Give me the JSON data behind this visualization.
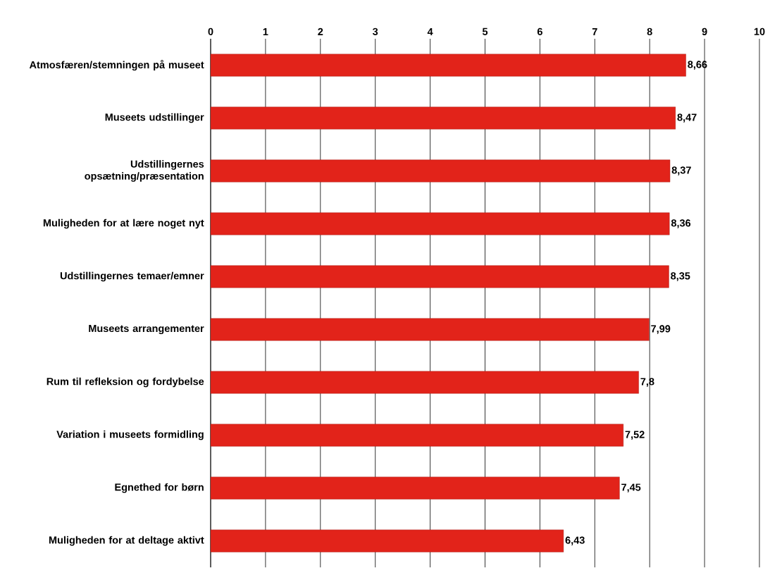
{
  "chart_data": {
    "type": "bar",
    "orientation": "horizontal",
    "categories": [
      "Atmosfæren/stemningen på museet",
      "Museets udstillinger",
      "Udstillingernes opsætning/præsentation",
      "Muligheden for at lære noget nyt",
      "Udstillingernes temaer/emner",
      "Museets arrangementer",
      "Rum til refleksion og fordybelse",
      "Variation i museets formidling",
      "Egnethed for børn",
      "Muligheden for at deltage aktivt"
    ],
    "values": [
      8.66,
      8.47,
      8.37,
      8.36,
      8.35,
      7.99,
      7.8,
      7.52,
      7.45,
      6.43
    ],
    "value_labels": [
      "8,66",
      "8,47",
      "8,37",
      "8,36",
      "8,35",
      "7,99",
      "7,8",
      "7,52",
      "7,45",
      "6,43"
    ],
    "color": "#e2231a",
    "xlim": [
      0,
      10
    ],
    "xticks": [
      0,
      1,
      2,
      3,
      4,
      5,
      6,
      7,
      8,
      9,
      10
    ],
    "grid": "x"
  }
}
